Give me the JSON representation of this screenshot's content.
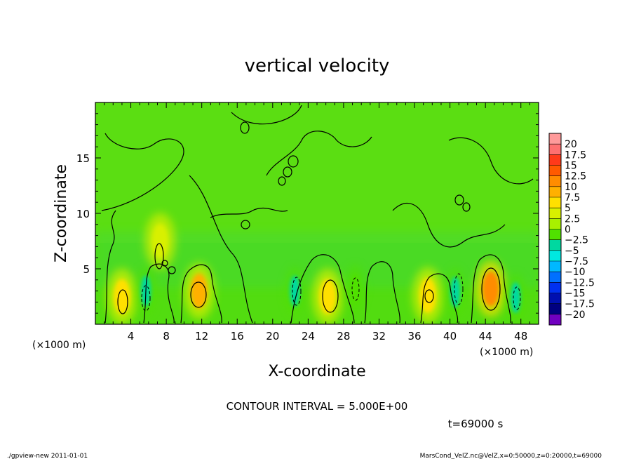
{
  "chart_data": {
    "type": "heatmap",
    "title": "vertical velocity",
    "xlabel": "X-coordinate",
    "ylabel": "Z-coordinate",
    "x_unit": "(×1000 m)",
    "y_unit": "(×1000 m)",
    "xlim": [
      0,
      50
    ],
    "ylim": [
      0,
      20
    ],
    "x_ticks": [
      "4",
      "8",
      "12",
      "16",
      "20",
      "24",
      "28",
      "32",
      "36",
      "40",
      "44",
      "48"
    ],
    "x_tick_values": [
      4,
      8,
      12,
      16,
      20,
      24,
      28,
      32,
      36,
      40,
      44,
      48
    ],
    "y_ticks": [
      "5",
      "10",
      "15"
    ],
    "y_tick_values": [
      5,
      10,
      15
    ],
    "colorbar": {
      "labels": [
        "20",
        "17.5",
        "15",
        "12.5",
        "10",
        "7.5",
        "5",
        "2.5",
        "0",
        "−2.5",
        "−5",
        "−7.5",
        "−10",
        "−12.5",
        "−15",
        "−17.5",
        "−20"
      ],
      "colors": [
        "#ff9a9a",
        "#ff7070",
        "#ff3a1a",
        "#ff5a00",
        "#ff8c00",
        "#ffb000",
        "#ffe000",
        "#d8f000",
        "#a8f000",
        "#50e000",
        "#00d8a0",
        "#00e8e0",
        "#00b8ff",
        "#0070ff",
        "#0030f0",
        "#0010b0",
        "#000080",
        "#7000c0"
      ]
    },
    "contour_interval_text": "CONTOUR INTERVAL = 5.000E+00",
    "time_label": "t=69000 s",
    "updrafts": [
      {
        "x": 3.0,
        "z": 2.5,
        "w": 6
      },
      {
        "x": 7.3,
        "z": 7.5,
        "w": 3
      },
      {
        "x": 11.7,
        "z": 3.0,
        "w": 7
      },
      {
        "x": 26.2,
        "z": 2.5,
        "w": 6
      },
      {
        "x": 37.5,
        "z": 2.6,
        "w": 4
      },
      {
        "x": 44.6,
        "z": 3.2,
        "w": 10
      }
    ],
    "downdrafts": [
      {
        "x": 5.7,
        "z": 3.0,
        "w": -4
      },
      {
        "x": 22.5,
        "z": 3.0,
        "w": -4
      },
      {
        "x": 29.3,
        "z": 3.2,
        "w": -3
      },
      {
        "x": 40.6,
        "z": 2.9,
        "w": -4
      },
      {
        "x": 47.4,
        "z": 2.4,
        "w": -6
      }
    ]
  },
  "footer": {
    "left": "./gpview-new  2011-01-01",
    "right": "MarsCond_VelZ.nc@VelZ,x=0:50000,z=0:20000,t=69000"
  }
}
